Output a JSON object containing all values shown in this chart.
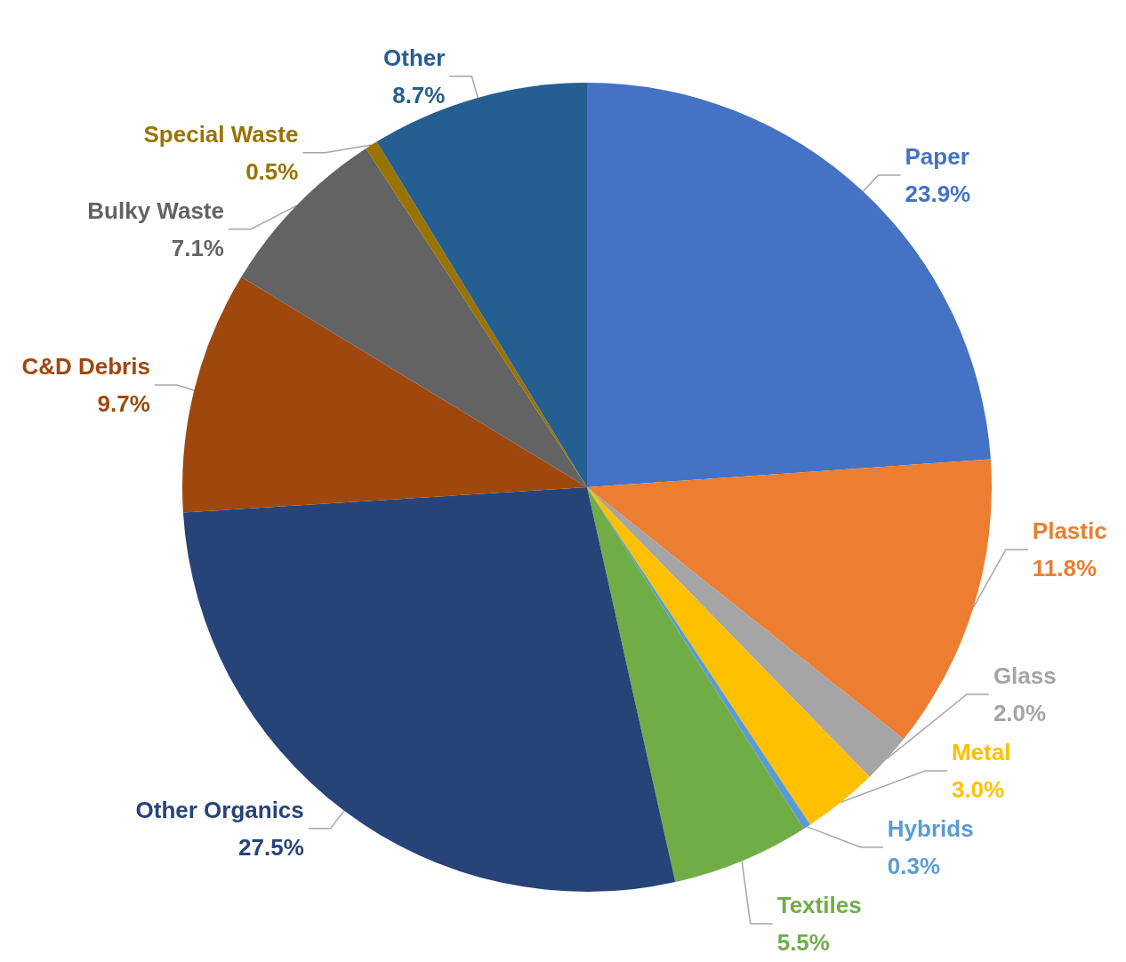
{
  "chart_data": {
    "type": "pie",
    "categories": [
      "Paper",
      "Plastic",
      "Glass",
      "Metal",
      "Hybrids",
      "Textiles",
      "Other Organics",
      "C&D Debris",
      "Bulky Waste",
      "Special Waste",
      "Other"
    ],
    "values": [
      23.9,
      11.8,
      2.0,
      3.0,
      0.3,
      5.5,
      27.5,
      9.7,
      7.1,
      0.5,
      8.7
    ],
    "colors": [
      "#4472c4",
      "#ed7d31",
      "#a5a5a5",
      "#ffc000",
      "#5b9bd5",
      "#70ad47",
      "#264478",
      "#9e480e",
      "#636363",
      "#997300",
      "#255e91"
    ],
    "value_labels": [
      "23.9%",
      "11.8%",
      "2.0%",
      "3.0%",
      "0.3%",
      "5.5%",
      "27.5%",
      "9.7%",
      "7.1%",
      "0.5%",
      "8.7%"
    ]
  }
}
